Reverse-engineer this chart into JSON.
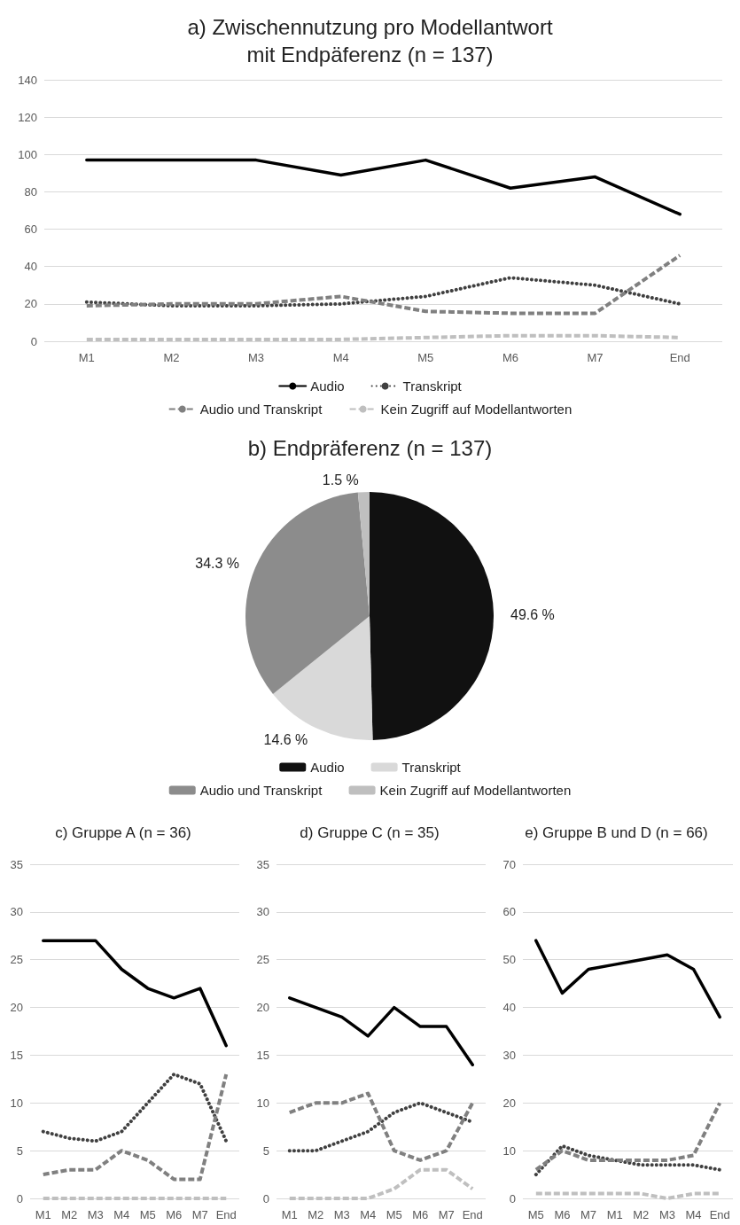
{
  "chart_data": [
    {
      "type": "line",
      "title": "a) Zwischennutzung pro Modellantwort\nmit Endpäferenz (n = 137)",
      "categories": [
        "M1",
        "M2",
        "M3",
        "M4",
        "M5",
        "M6",
        "M7",
        "End"
      ],
      "ylim": [
        0,
        140
      ],
      "yticks": [
        0,
        20,
        40,
        60,
        80,
        100,
        120,
        140
      ],
      "grid": "y",
      "legend": "bottom",
      "marker": "none",
      "series": [
        {
          "name": "Audio",
          "color": "#000000",
          "line_style": "solid",
          "values": [
            97,
            97,
            97,
            89,
            97,
            82,
            88,
            68
          ]
        },
        {
          "name": "Transkript",
          "color": "#404040",
          "line_style": "dotted",
          "values": [
            21,
            19,
            19,
            20,
            24,
            34,
            30,
            20
          ]
        },
        {
          "name": "Audio und Transkript",
          "color": "#808080",
          "line_style": "dashed",
          "values": [
            19,
            20,
            20,
            24,
            16,
            15,
            15,
            46
          ]
        },
        {
          "name": "Kein Zugriff auf Modellantworten",
          "color": "#bfbfbf",
          "line_style": "dashed",
          "values": [
            1,
            1,
            1,
            1,
            2,
            3,
            3,
            2
          ]
        }
      ]
    },
    {
      "type": "pie",
      "title": "b) Endpräferenz (n = 137)",
      "categories": [
        "Audio",
        "Transkript",
        "Audio und Transkript",
        "Kein Zugriff auf Modellantworten"
      ],
      "values": [
        49.6,
        14.6,
        34.3,
        1.5
      ],
      "colors": [
        "#111111",
        "#d9d9d9",
        "#8c8c8c",
        "#bfbfbf"
      ],
      "value_labels": [
        "49.6 %",
        "14.6 %",
        "34.3 %",
        "1.5 %"
      ],
      "legend": "bottom"
    },
    {
      "type": "line",
      "title": "c) Gruppe A (n = 36)",
      "categories": [
        "M1",
        "M2",
        "M3",
        "M4",
        "M5",
        "M6",
        "M7",
        "End"
      ],
      "ylim": [
        0,
        35
      ],
      "yticks": [
        0,
        5,
        10,
        15,
        20,
        25,
        30,
        35
      ],
      "grid": "y",
      "marker": "none",
      "series": [
        {
          "color": "#000000",
          "line_style": "solid",
          "values": [
            27,
            27,
            27,
            24,
            22,
            21,
            22,
            16
          ]
        },
        {
          "color": "#404040",
          "line_style": "dotted",
          "values": [
            7,
            6.3,
            6,
            7,
            10,
            13,
            12,
            6
          ]
        },
        {
          "color": "#808080",
          "line_style": "dashed",
          "values": [
            2.5,
            3,
            3,
            5,
            4,
            2,
            2,
            13
          ]
        },
        {
          "color": "#bfbfbf",
          "line_style": "dashed",
          "values": [
            0,
            0,
            0,
            0,
            0,
            0,
            0,
            0
          ]
        }
      ]
    },
    {
      "type": "line",
      "title": "d) Gruppe C (n = 35)",
      "categories": [
        "M1",
        "M2",
        "M3",
        "M4",
        "M5",
        "M6",
        "M7",
        "End"
      ],
      "ylim": [
        0,
        35
      ],
      "yticks": [
        0,
        5,
        10,
        15,
        20,
        25,
        30,
        35
      ],
      "grid": "y",
      "marker": "none",
      "series": [
        {
          "color": "#000000",
          "line_style": "solid",
          "values": [
            21,
            20,
            19,
            17,
            20,
            18,
            18,
            14
          ]
        },
        {
          "color": "#404040",
          "line_style": "dotted",
          "values": [
            5,
            5,
            6,
            7,
            9,
            10,
            9,
            8
          ]
        },
        {
          "color": "#808080",
          "line_style": "dashed",
          "values": [
            9,
            10,
            10,
            11,
            5,
            4,
            5,
            10
          ]
        },
        {
          "color": "#bfbfbf",
          "line_style": "dashed",
          "values": [
            0,
            0,
            0,
            0,
            1,
            3,
            3,
            1
          ]
        }
      ]
    },
    {
      "type": "line",
      "title": "e) Gruppe B und D (n = 66)",
      "categories": [
        "M5",
        "M6",
        "M7",
        "M1",
        "M2",
        "M3",
        "M4",
        "End"
      ],
      "ylim": [
        0,
        70
      ],
      "yticks": [
        0,
        10,
        20,
        30,
        40,
        50,
        60,
        70
      ],
      "grid": "y",
      "marker": "none",
      "series": [
        {
          "color": "#000000",
          "line_style": "solid",
          "values": [
            54,
            43,
            48,
            49,
            50,
            51,
            48,
            38
          ]
        },
        {
          "color": "#404040",
          "line_style": "dotted",
          "values": [
            5,
            11,
            9,
            8,
            7,
            7,
            7,
            6
          ]
        },
        {
          "color": "#808080",
          "line_style": "dashed",
          "values": [
            6,
            10,
            8,
            8,
            8,
            8,
            9,
            20
          ]
        },
        {
          "color": "#bfbfbf",
          "line_style": "dashed",
          "values": [
            1,
            1,
            1,
            1,
            1,
            0,
            1,
            1
          ]
        }
      ]
    }
  ]
}
